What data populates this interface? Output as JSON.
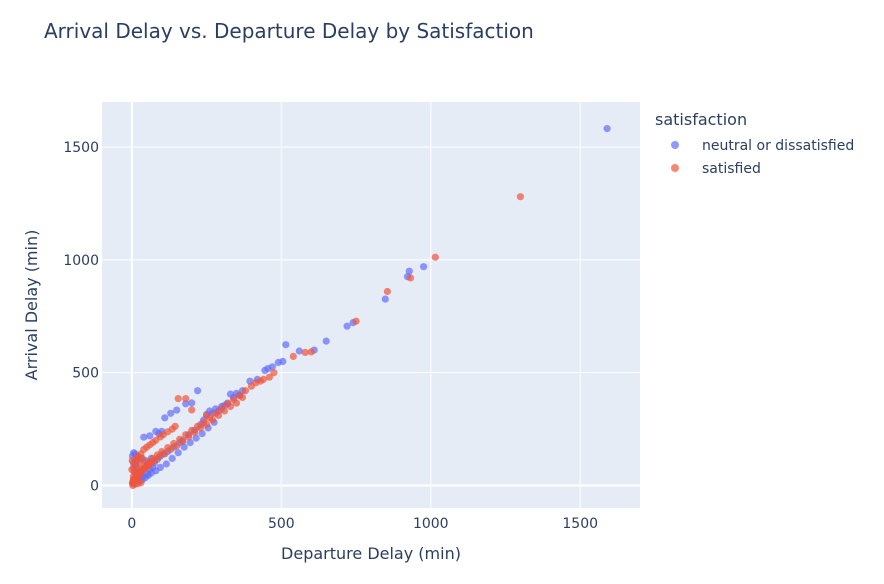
{
  "chart_data": {
    "type": "scatter",
    "title": "Arrival Delay vs. Departure Delay by Satisfaction",
    "xlabel": "Departure Delay (min)",
    "ylabel": "Arrival Delay (min)",
    "xlim": [
      -100,
      1700
    ],
    "ylim": [
      -100,
      1700
    ],
    "xticks": [
      0,
      500,
      1000,
      1500
    ],
    "yticks": [
      0,
      500,
      1000,
      1500
    ],
    "grid": true,
    "legend_title": "satisfaction",
    "legend_position": "right",
    "series": [
      {
        "name": "neutral or dissatisfied",
        "color": "#636efa",
        "points": [
          [
            1590,
            1582
          ],
          [
            976,
            970
          ],
          [
            928,
            950
          ],
          [
            922,
            926
          ],
          [
            848,
            826
          ],
          [
            740,
            722
          ],
          [
            720,
            706
          ],
          [
            650,
            640
          ],
          [
            610,
            600
          ],
          [
            560,
            596
          ],
          [
            515,
            624
          ],
          [
            505,
            550
          ],
          [
            490,
            545
          ],
          [
            470,
            526
          ],
          [
            455,
            518
          ],
          [
            445,
            510
          ],
          [
            420,
            470
          ],
          [
            395,
            462
          ],
          [
            370,
            420
          ],
          [
            350,
            408
          ],
          [
            330,
            405
          ],
          [
            300,
            350
          ],
          [
            280,
            340
          ],
          [
            260,
            330
          ],
          [
            250,
            315
          ],
          [
            240,
            290
          ],
          [
            220,
            420
          ],
          [
            200,
            366
          ],
          [
            180,
            362
          ],
          [
            150,
            334
          ],
          [
            130,
            320
          ],
          [
            110,
            300
          ],
          [
            100,
            240
          ],
          [
            90,
            230
          ],
          [
            80,
            240
          ],
          [
            60,
            220
          ],
          [
            40,
            214
          ],
          [
            30,
            120
          ],
          [
            20,
            130
          ],
          [
            10,
            140
          ],
          [
            5,
            100
          ],
          [
            15,
            80
          ],
          [
            25,
            60
          ],
          [
            35,
            40
          ],
          [
            50,
            50
          ],
          [
            60,
            70
          ],
          [
            70,
            80
          ],
          [
            45,
            110
          ],
          [
            55,
            90
          ],
          [
            65,
            120
          ],
          [
            75,
            100
          ],
          [
            85,
            115
          ],
          [
            95,
            130
          ],
          [
            105,
            140
          ],
          [
            120,
            150
          ],
          [
            140,
            170
          ],
          [
            160,
            190
          ],
          [
            170,
            200
          ],
          [
            190,
            225
          ],
          [
            210,
            245
          ],
          [
            230,
            270
          ],
          [
            270,
            320
          ],
          [
            290,
            330
          ],
          [
            310,
            355
          ],
          [
            320,
            365
          ],
          [
            340,
            390
          ],
          [
            360,
            400
          ],
          [
            5,
            20
          ],
          [
            10,
            30
          ],
          [
            15,
            45
          ],
          [
            20,
            35
          ],
          [
            30,
            55
          ],
          [
            40,
            75
          ],
          [
            50,
            90
          ],
          [
            8,
            60
          ],
          [
            12,
            90
          ],
          [
            18,
            110
          ],
          [
            3,
            10
          ],
          [
            25,
            20
          ],
          [
            35,
            25
          ],
          [
            45,
            35
          ],
          [
            55,
            45
          ],
          [
            65,
            55
          ],
          [
            80,
            65
          ],
          [
            95,
            80
          ],
          [
            115,
            95
          ],
          [
            135,
            120
          ],
          [
            155,
            145
          ],
          [
            175,
            170
          ],
          [
            195,
            190
          ],
          [
            215,
            210
          ],
          [
            235,
            230
          ],
          [
            255,
            255
          ],
          [
            275,
            280
          ],
          [
            2,
            130
          ],
          [
            6,
            145
          ]
        ]
      },
      {
        "name": "satisfied",
        "color": "#ef553b",
        "points": [
          [
            1300,
            1280
          ],
          [
            1015,
            1012
          ],
          [
            932,
            920
          ],
          [
            855,
            860
          ],
          [
            750,
            728
          ],
          [
            600,
            592
          ],
          [
            580,
            590
          ],
          [
            540,
            572
          ],
          [
            475,
            500
          ],
          [
            460,
            480
          ],
          [
            440,
            470
          ],
          [
            430,
            462
          ],
          [
            415,
            455
          ],
          [
            400,
            440
          ],
          [
            380,
            420
          ],
          [
            360,
            398
          ],
          [
            340,
            380
          ],
          [
            320,
            362
          ],
          [
            300,
            340
          ],
          [
            280,
            320
          ],
          [
            260,
            300
          ],
          [
            240,
            280
          ],
          [
            220,
            262
          ],
          [
            200,
            244
          ],
          [
            180,
            225
          ],
          [
            160,
            205
          ],
          [
            140,
            186
          ],
          [
            120,
            168
          ],
          [
            100,
            150
          ],
          [
            85,
            135
          ],
          [
            70,
            120
          ],
          [
            55,
            105
          ],
          [
            40,
            90
          ],
          [
            25,
            75
          ],
          [
            10,
            60
          ],
          [
            5,
            40
          ],
          [
            15,
            50
          ],
          [
            30,
            62
          ],
          [
            45,
            80
          ],
          [
            60,
            95
          ],
          [
            75,
            110
          ],
          [
            90,
            125
          ],
          [
            110,
            140
          ],
          [
            130,
            160
          ],
          [
            150,
            175
          ],
          [
            170,
            195
          ],
          [
            190,
            215
          ],
          [
            210,
            235
          ],
          [
            230,
            255
          ],
          [
            250,
            270
          ],
          [
            270,
            290
          ],
          [
            290,
            310
          ],
          [
            310,
            330
          ],
          [
            330,
            350
          ],
          [
            350,
            365
          ],
          [
            370,
            390
          ],
          [
            180,
            385
          ],
          [
            155,
            385
          ],
          [
            200,
            335
          ],
          [
            250,
            310
          ],
          [
            2,
            10
          ],
          [
            4,
            20
          ],
          [
            6,
            30
          ],
          [
            8,
            15
          ],
          [
            12,
            25
          ],
          [
            18,
            35
          ],
          [
            22,
            45
          ],
          [
            28,
            52
          ],
          [
            35,
            68
          ],
          [
            42,
            72
          ],
          [
            50,
            85
          ],
          [
            58,
            92
          ],
          [
            65,
            100
          ],
          [
            20,
            130
          ],
          [
            30,
            140
          ],
          [
            40,
            160
          ],
          [
            50,
            170
          ],
          [
            60,
            180
          ],
          [
            70,
            190
          ],
          [
            80,
            200
          ],
          [
            95,
            215
          ],
          [
            105,
            225
          ],
          [
            120,
            238
          ],
          [
            135,
            250
          ],
          [
            145,
            262
          ],
          [
            10,
            100
          ],
          [
            15,
            115
          ],
          [
            25,
            105
          ],
          [
            35,
            120
          ],
          [
            5,
            80
          ],
          [
            3,
            0
          ],
          [
            10,
            5
          ],
          [
            20,
            8
          ],
          [
            30,
            12
          ],
          [
            0,
            70
          ],
          [
            1,
            110
          ]
        ]
      }
    ]
  }
}
